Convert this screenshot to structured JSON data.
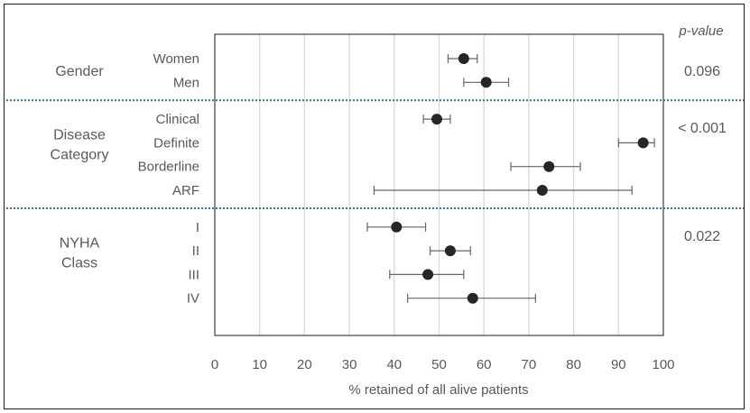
{
  "chart_data": {
    "type": "forest",
    "xlabel": "% retained of all alive patients",
    "xlim": [
      0,
      100
    ],
    "xticks": [
      0,
      10,
      20,
      30,
      40,
      50,
      60,
      70,
      80,
      90,
      100
    ],
    "pvalue_header": "p-value",
    "grid": "vertical",
    "marker_color": "#262626",
    "errorbar_color": "#666666",
    "separator_color": "#2e75b6",
    "groups": [
      {
        "label_lines": [
          "Gender"
        ],
        "pvalue": "0.096",
        "rows": [
          {
            "label": "Women",
            "value": 55.5,
            "lower": 52,
            "upper": 58.5
          },
          {
            "label": "Men",
            "value": 60.5,
            "lower": 55.5,
            "upper": 65.5
          }
        ]
      },
      {
        "label_lines": [
          "Disease",
          "Category"
        ],
        "pvalue": "< 0.001",
        "rows": [
          {
            "label": "Clinical",
            "value": 49.5,
            "lower": 46.5,
            "upper": 52.5
          },
          {
            "label": "Definite",
            "value": 95.5,
            "lower": 90,
            "upper": 98
          },
          {
            "label": "Borderline",
            "value": 74.5,
            "lower": 66,
            "upper": 81.5
          },
          {
            "label": "ARF",
            "value": 73,
            "lower": 35.5,
            "upper": 93
          }
        ]
      },
      {
        "label_lines": [
          "NYHA",
          "Class"
        ],
        "pvalue": "0.022",
        "rows": [
          {
            "label": "I",
            "value": 40.5,
            "lower": 34,
            "upper": 47
          },
          {
            "label": "II",
            "value": 52.5,
            "lower": 48,
            "upper": 57
          },
          {
            "label": "III",
            "value": 47.5,
            "lower": 39,
            "upper": 55.5
          },
          {
            "label": "IV",
            "value": 57.5,
            "lower": 43,
            "upper": 71.5
          }
        ]
      }
    ]
  }
}
